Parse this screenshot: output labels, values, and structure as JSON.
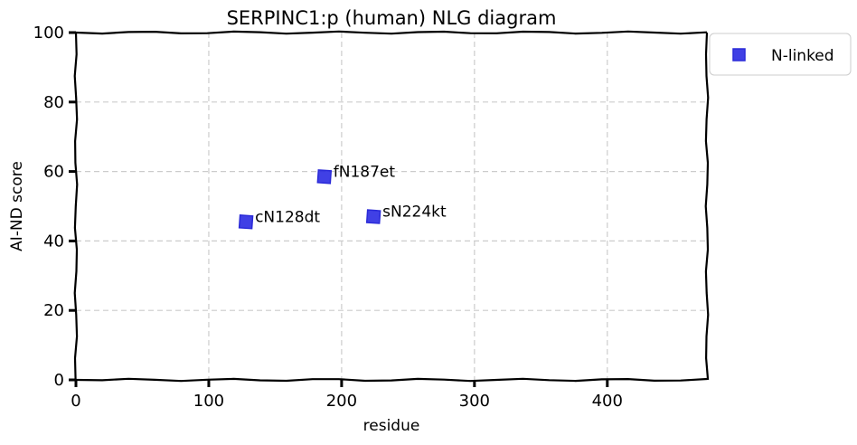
{
  "chart_data": {
    "type": "scatter",
    "title": "SERPINC1:p (human) NLG diagram",
    "xlabel": "residue",
    "ylabel": "AI-ND score",
    "xlim": [
      0,
      475
    ],
    "ylim": [
      0,
      100
    ],
    "xticks": [
      0,
      100,
      200,
      300,
      400
    ],
    "yticks": [
      0,
      20,
      40,
      60,
      80,
      100
    ],
    "grid": true,
    "legend_position": "outside-top-right",
    "series": [
      {
        "name": "N-linked",
        "color": "#1f1fe0",
        "marker": "square",
        "points": [
          {
            "x": 128,
            "y": 45.5,
            "label": "cN128dt"
          },
          {
            "x": 187,
            "y": 58.5,
            "label": "fN187et"
          },
          {
            "x": 224,
            "y": 47,
            "label": "sN224kt"
          }
        ]
      }
    ]
  }
}
